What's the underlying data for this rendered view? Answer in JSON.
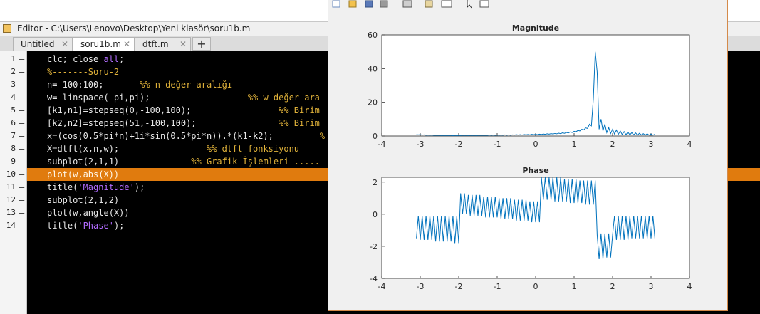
{
  "editor": {
    "title": "Editor - C:\\Users\\Lenovo\\Desktop\\Yeni klasör\\soru1b.m",
    "tabs": [
      "Untitled",
      "soru1b.m",
      "dtft.m"
    ],
    "active_tab": 1,
    "highlight_line": 9,
    "line_numbers": [
      1,
      2,
      3,
      4,
      5,
      6,
      7,
      8,
      9,
      10,
      11,
      12,
      13,
      14
    ],
    "lines": [
      [
        [
          "clc; close ",
          "code"
        ],
        [
          "all",
          "kw"
        ],
        [
          ";",
          "code"
        ]
      ],
      [
        [
          "%-------Soru-2",
          "cmt"
        ]
      ],
      [
        [
          "n=-100:100;       ",
          "code"
        ],
        [
          "%% n değer aralığı",
          "cmt"
        ]
      ],
      [
        [
          "w= linspace(-pi,pi);                   ",
          "code"
        ],
        [
          "%% w değer ara",
          "cmt"
        ]
      ],
      [
        [
          "[k1,n1]=stepseq(0,-100,100);                 ",
          "code"
        ],
        [
          "%% Birim",
          "cmt"
        ]
      ],
      [
        [
          "[k2,n2]=stepseq(51,-100,100);                ",
          "code"
        ],
        [
          "%% Birim",
          "cmt"
        ]
      ],
      [
        [
          "x=(cos(0.5*pi*n)+1i*sin(0.5*pi*n)).*(k1-k2);         ",
          "code"
        ],
        [
          "%",
          "cmt"
        ]
      ],
      [
        [
          "X=dtft(x,n,w);                 ",
          "code"
        ],
        [
          "%% dtft fonksiyonu",
          "cmt"
        ]
      ],
      [
        [
          "subplot(2,1,1)              ",
          "code"
        ],
        [
          "%% Grafik İşlemleri .....",
          "cmt"
        ]
      ],
      [
        [
          "plot(w,abs(X))",
          "code"
        ]
      ],
      [
        [
          "title(",
          "code"
        ],
        [
          "'Magnitude'",
          "str"
        ],
        [
          ");",
          "code"
        ]
      ],
      [
        [
          "subplot(2,1,2)",
          "code"
        ]
      ],
      [
        [
          "plot(w,angle(X))",
          "code"
        ]
      ],
      [
        [
          "title(",
          "code"
        ],
        [
          "'Phase'",
          "str"
        ],
        [
          ");",
          "code"
        ]
      ]
    ]
  },
  "figure": {
    "charts": [
      {
        "type": "line",
        "title": "Magnitude",
        "x": [
          -3.1,
          -3.05,
          -3,
          -2.95,
          -2.9,
          -2.85,
          -2.8,
          -2.75,
          -2.7,
          -2.65,
          -2.6,
          -2.55,
          -2.5,
          -2.45,
          -2.4,
          -2.35,
          -2.3,
          -2.25,
          -2.2,
          -2.15,
          -2.1,
          -2.05,
          -2,
          -1.95,
          -1.9,
          -1.85,
          -1.8,
          -1.75,
          -1.7,
          -1.65,
          -1.6,
          -1.55,
          -1.5,
          -1.45,
          -1.4,
          -1.35,
          -1.3,
          -1.25,
          -1.2,
          -1.15,
          -1.1,
          -1.05,
          -1,
          -0.95,
          -0.9,
          -0.85,
          -0.8,
          -0.75,
          -0.7,
          -0.65,
          -0.6,
          -0.55,
          -0.5,
          -0.45,
          -0.4,
          -0.35,
          -0.3,
          -0.25,
          -0.2,
          -0.15,
          -0.1,
          -0.05,
          0,
          0.05,
          0.1,
          0.15,
          0.2,
          0.25,
          0.3,
          0.35,
          0.4,
          0.45,
          0.5,
          0.55,
          0.6,
          0.65,
          0.7,
          0.75,
          0.8,
          0.85,
          0.9,
          0.95,
          1,
          1.05,
          1.1,
          1.15,
          1.2,
          1.25,
          1.3,
          1.35,
          1.4,
          1.45,
          1.5,
          1.55,
          1.6,
          1.65,
          1.7,
          1.75,
          1.8,
          1.85,
          1.9,
          1.95,
          2,
          2.05,
          2.1,
          2.15,
          2.2,
          2.25,
          2.3,
          2.35,
          2.4,
          2.45,
          2.5,
          2.55,
          2.6,
          2.65,
          2.7,
          2.75,
          2.8,
          2.85,
          2.9,
          2.95,
          3,
          3.05,
          3.1
        ],
        "series": [
          {
            "color": "#0072bd",
            "values": [
              0.8,
              0.7,
              0.8,
              0.6,
              0.7,
              0.5,
              0.6,
              0.5,
              0.6,
              0.4,
              0.5,
              0.4,
              0.5,
              0.3,
              0.4,
              0.3,
              0.4,
              0.3,
              0.4,
              0.2,
              0.4,
              0.2,
              0.4,
              0.3,
              0.5,
              0.3,
              0.5,
              0.3,
              0.5,
              0.3,
              0.5,
              0.3,
              0.5,
              0.4,
              0.5,
              0.4,
              0.5,
              0.4,
              0.6,
              0.4,
              0.6,
              0.4,
              0.6,
              0.5,
              0.6,
              0.5,
              0.7,
              0.5,
              0.7,
              0.5,
              0.7,
              0.6,
              0.8,
              0.6,
              0.8,
              0.6,
              0.9,
              0.7,
              0.9,
              0.7,
              1,
              0.8,
              1,
              0.8,
              1.1,
              0.9,
              1.2,
              1,
              1.3,
              1.1,
              1.4,
              1.2,
              1.5,
              1.3,
              1.7,
              1.4,
              1.9,
              1.6,
              2.1,
              1.8,
              2.4,
              2.1,
              2.8,
              2.5,
              3.3,
              3,
              4,
              3.6,
              4.8,
              4.5,
              7,
              6,
              22,
              50,
              38,
              4,
              10,
              3,
              7,
              2,
              5,
              1.5,
              4,
              1.2,
              3.5,
              1,
              3,
              0.9,
              2.6,
              0.8,
              2.3,
              0.7,
              2,
              0.7,
              1.8,
              0.6,
              1.6,
              0.6,
              1.4,
              0.5,
              1.3,
              0.5,
              1.2,
              0.5,
              1
            ]
          }
        ],
        "xlim": [
          -4,
          4
        ],
        "xticks": [
          -4,
          -3,
          -2,
          -1,
          0,
          1,
          2,
          3,
          4
        ],
        "ylim": [
          0,
          60
        ],
        "yticks": [
          0,
          20,
          40,
          60
        ]
      },
      {
        "type": "line",
        "title": "Phase",
        "x": [
          -3.1,
          -3.05,
          -3,
          -2.95,
          -2.9,
          -2.85,
          -2.8,
          -2.75,
          -2.7,
          -2.65,
          -2.6,
          -2.55,
          -2.5,
          -2.45,
          -2.4,
          -2.35,
          -2.3,
          -2.25,
          -2.2,
          -2.15,
          -2.1,
          -2.05,
          -2,
          -1.95,
          -1.9,
          -1.85,
          -1.8,
          -1.75,
          -1.7,
          -1.65,
          -1.6,
          -1.55,
          -1.5,
          -1.45,
          -1.4,
          -1.35,
          -1.3,
          -1.25,
          -1.2,
          -1.15,
          -1.1,
          -1.05,
          -1,
          -0.95,
          -0.9,
          -0.85,
          -0.8,
          -0.75,
          -0.7,
          -0.65,
          -0.6,
          -0.55,
          -0.5,
          -0.45,
          -0.4,
          -0.35,
          -0.3,
          -0.25,
          -0.2,
          -0.15,
          -0.1,
          -0.05,
          0,
          0.05,
          0.1,
          0.15,
          0.2,
          0.25,
          0.3,
          0.35,
          0.4,
          0.45,
          0.5,
          0.55,
          0.6,
          0.65,
          0.7,
          0.75,
          0.8,
          0.85,
          0.9,
          0.95,
          1,
          1.05,
          1.1,
          1.15,
          1.2,
          1.25,
          1.3,
          1.35,
          1.4,
          1.45,
          1.5,
          1.55,
          1.6,
          1.65,
          1.7,
          1.75,
          1.8,
          1.85,
          1.9,
          1.95,
          2,
          2.05,
          2.1,
          2.15,
          2.2,
          2.25,
          2.3,
          2.35,
          2.4,
          2.45,
          2.5,
          2.55,
          2.6,
          2.65,
          2.7,
          2.75,
          2.8,
          2.85,
          2.9,
          2.95,
          3,
          3.05,
          3.1
        ],
        "series": [
          {
            "color": "#0072bd",
            "values": [
              -1.5,
              -0.1,
              -1.6,
              -0.1,
              -1.6,
              -0.1,
              -1.6,
              -0.1,
              -1.6,
              -0.1,
              -1.7,
              -0.1,
              -1.7,
              -0.1,
              -1.7,
              -0.1,
              -1.7,
              -0.1,
              -1.7,
              -0.1,
              -1.8,
              -0.1,
              -1.8,
              1.3,
              0,
              1.3,
              0,
              1.2,
              -0.1,
              1.2,
              -0.1,
              1.2,
              -0.1,
              1.2,
              -0.1,
              1.1,
              -0.2,
              1.1,
              -0.2,
              1.1,
              -0.2,
              1.1,
              -0.2,
              1,
              -0.3,
              1,
              -0.3,
              1,
              -0.3,
              1,
              -0.3,
              0.9,
              -0.4,
              0.9,
              -0.4,
              0.9,
              -0.4,
              0.9,
              -0.4,
              0.8,
              -0.5,
              0.8,
              -0.5,
              0.8,
              -0.5,
              2.3,
              0.9,
              2.3,
              0.9,
              2.3,
              0.9,
              2.3,
              0.8,
              2.3,
              0.8,
              2.3,
              0.8,
              2.2,
              0.8,
              2.2,
              0.7,
              2.2,
              0.7,
              2.2,
              0.7,
              2.1,
              0.7,
              2.1,
              0.6,
              2.1,
              0.6,
              2.1,
              0.6,
              2.1,
              -1.3,
              -2.8,
              -1.2,
              -2.8,
              -1.2,
              -2.7,
              -1.2,
              -2.7,
              -1.3,
              -0.1,
              -1.6,
              -0.1,
              -1.6,
              -0.1,
              -1.6,
              -0.1,
              -1.6,
              -0.1,
              -1.5,
              -0.1,
              -1.5,
              -0.1,
              -1.5,
              -0.1,
              -1.5,
              -0.1,
              -1.5,
              -0.1,
              -1.5,
              -0.1,
              -1.5
            ]
          }
        ],
        "xlim": [
          -4,
          4
        ],
        "xticks": [
          -4,
          -3,
          -2,
          -1,
          0,
          1,
          2,
          3,
          4
        ],
        "ylim": [
          -4,
          2.3
        ],
        "yticks": [
          -4,
          -2,
          0,
          2
        ]
      }
    ]
  }
}
